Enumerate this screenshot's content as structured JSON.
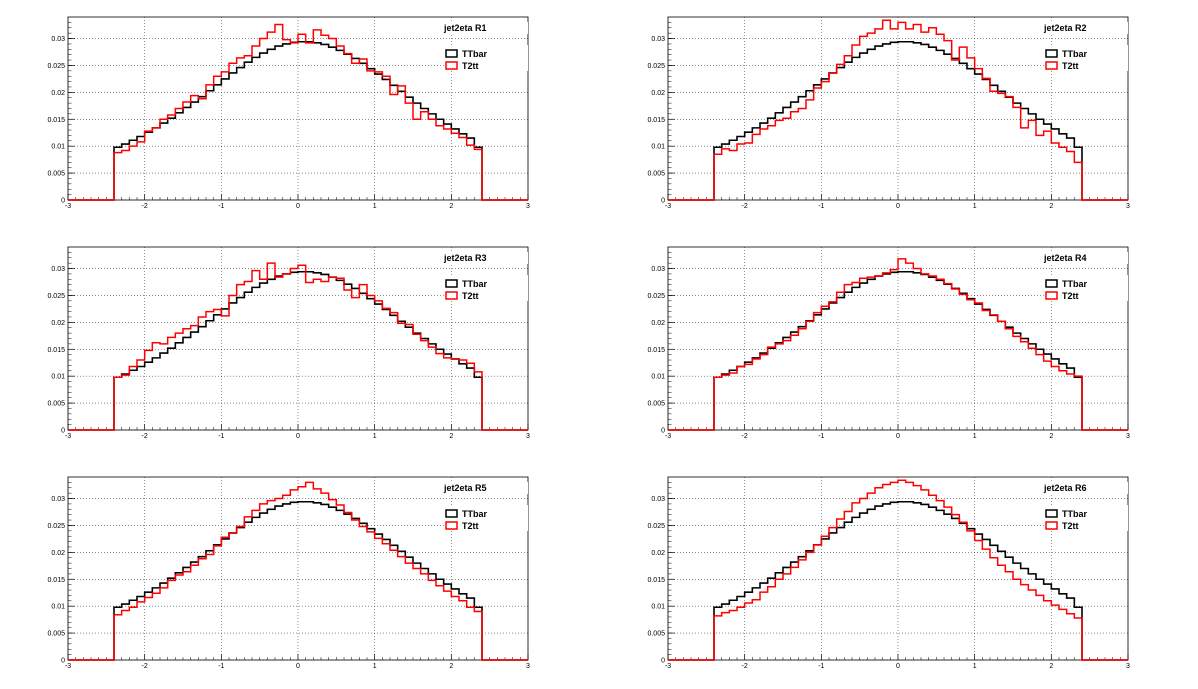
{
  "chart_data": [
    {
      "type": "line",
      "title": "jet2eta  R1",
      "xlim": [
        -3,
        3
      ],
      "ylim": [
        0,
        0.034
      ],
      "xticks": [
        "-3",
        "-2",
        "-1",
        "0",
        "1",
        "2",
        "3"
      ],
      "yticks": [
        "0",
        "0.005",
        "0.01",
        "0.015",
        "0.02",
        "0.025",
        "0.03"
      ],
      "grid": true,
      "legend_position": "top-right",
      "x_range": [
        -2.4,
        2.4
      ],
      "bins": 48,
      "series": [
        {
          "name": "TTbar",
          "color": "#000000",
          "values": [
            0.0098,
            0.0104,
            0.0111,
            0.0118,
            0.0126,
            0.0134,
            0.0143,
            0.0152,
            0.0162,
            0.0172,
            0.0182,
            0.0192,
            0.0203,
            0.0214,
            0.0225,
            0.0236,
            0.0246,
            0.0256,
            0.0265,
            0.0273,
            0.028,
            0.0286,
            0.029,
            0.0293,
            0.0294,
            0.0294,
            0.0292,
            0.0289,
            0.0284,
            0.0278,
            0.0271,
            0.0263,
            0.0254,
            0.0244,
            0.0234,
            0.0224,
            0.0213,
            0.0202,
            0.0191,
            0.018,
            0.017,
            0.016,
            0.015,
            0.0141,
            0.0132,
            0.0123,
            0.0115,
            0.0098
          ]
        },
        {
          "name": "T2tt",
          "color": "#ff0000",
          "values": [
            0.0088,
            0.0092,
            0.01,
            0.0108,
            0.0128,
            0.0134,
            0.015,
            0.0158,
            0.017,
            0.0182,
            0.0194,
            0.0188,
            0.0214,
            0.023,
            0.0238,
            0.0254,
            0.0264,
            0.0268,
            0.0286,
            0.03,
            0.0312,
            0.0326,
            0.0298,
            0.0292,
            0.0308,
            0.0292,
            0.0316,
            0.0306,
            0.03,
            0.0286,
            0.0272,
            0.0254,
            0.0262,
            0.024,
            0.0238,
            0.023,
            0.0196,
            0.0212,
            0.018,
            0.015,
            0.0164,
            0.015,
            0.0138,
            0.0132,
            0.0124,
            0.0116,
            0.0102,
            0.0094
          ]
        }
      ]
    },
    {
      "type": "line",
      "title": "jet2eta  R2",
      "xlim": [
        -3,
        3
      ],
      "ylim": [
        0,
        0.034
      ],
      "xticks": [
        "-3",
        "-2",
        "-1",
        "0",
        "1",
        "2",
        "3"
      ],
      "yticks": [
        "0",
        "0.005",
        "0.01",
        "0.015",
        "0.02",
        "0.025",
        "0.03"
      ],
      "grid": true,
      "legend_position": "top-right",
      "x_range": [
        -2.4,
        2.4
      ],
      "bins": 48,
      "series": [
        {
          "name": "TTbar",
          "color": "#000000",
          "values": [
            0.0098,
            0.0104,
            0.0111,
            0.0118,
            0.0126,
            0.0134,
            0.0143,
            0.0152,
            0.0162,
            0.0172,
            0.0182,
            0.0192,
            0.0203,
            0.0214,
            0.0225,
            0.0236,
            0.0246,
            0.0256,
            0.0265,
            0.0273,
            0.028,
            0.0286,
            0.029,
            0.0293,
            0.0294,
            0.0294,
            0.0292,
            0.0289,
            0.0284,
            0.0278,
            0.0271,
            0.0263,
            0.0254,
            0.0244,
            0.0234,
            0.0224,
            0.0213,
            0.0202,
            0.0191,
            0.018,
            0.017,
            0.016,
            0.015,
            0.0141,
            0.0132,
            0.0123,
            0.0115,
            0.0098
          ]
        },
        {
          "name": "T2tt",
          "color": "#ff0000",
          "values": [
            0.0085,
            0.0095,
            0.0092,
            0.0104,
            0.0106,
            0.0122,
            0.0132,
            0.0138,
            0.0148,
            0.0152,
            0.0164,
            0.017,
            0.0186,
            0.0208,
            0.022,
            0.0236,
            0.0252,
            0.0268,
            0.0288,
            0.0304,
            0.031,
            0.0318,
            0.0334,
            0.0318,
            0.033,
            0.0318,
            0.0326,
            0.0312,
            0.032,
            0.0308,
            0.0296,
            0.026,
            0.0284,
            0.0264,
            0.0244,
            0.0226,
            0.0202,
            0.0198,
            0.0192,
            0.0172,
            0.0134,
            0.0148,
            0.012,
            0.0128,
            0.0106,
            0.0098,
            0.009,
            0.007
          ]
        }
      ]
    },
    {
      "type": "line",
      "title": "jet2eta  R3",
      "xlim": [
        -3,
        3
      ],
      "ylim": [
        0,
        0.034
      ],
      "xticks": [
        "-3",
        "-2",
        "-1",
        "0",
        "1",
        "2",
        "3"
      ],
      "yticks": [
        "0",
        "0.005",
        "0.01",
        "0.015",
        "0.02",
        "0.025",
        "0.03"
      ],
      "grid": true,
      "legend_position": "top-right",
      "x_range": [
        -2.4,
        2.4
      ],
      "bins": 48,
      "series": [
        {
          "name": "TTbar",
          "color": "#000000",
          "values": [
            0.0098,
            0.0104,
            0.0111,
            0.0118,
            0.0126,
            0.0134,
            0.0143,
            0.0152,
            0.0162,
            0.0172,
            0.0182,
            0.0192,
            0.0203,
            0.0214,
            0.0225,
            0.0236,
            0.0246,
            0.0256,
            0.0265,
            0.0273,
            0.028,
            0.0286,
            0.029,
            0.0293,
            0.0294,
            0.0294,
            0.0292,
            0.0289,
            0.0284,
            0.0278,
            0.0271,
            0.0263,
            0.0254,
            0.0244,
            0.0234,
            0.0224,
            0.0213,
            0.0202,
            0.0191,
            0.018,
            0.017,
            0.016,
            0.015,
            0.0141,
            0.0132,
            0.0123,
            0.0115,
            0.0098
          ]
        },
        {
          "name": "T2tt",
          "color": "#ff0000",
          "values": [
            0.0098,
            0.0102,
            0.0118,
            0.013,
            0.0148,
            0.0162,
            0.016,
            0.0172,
            0.018,
            0.0188,
            0.0194,
            0.021,
            0.022,
            0.0224,
            0.0212,
            0.025,
            0.027,
            0.0276,
            0.0296,
            0.028,
            0.031,
            0.0284,
            0.029,
            0.03,
            0.0306,
            0.0274,
            0.028,
            0.0276,
            0.0284,
            0.0282,
            0.026,
            0.0246,
            0.027,
            0.025,
            0.024,
            0.0226,
            0.0218,
            0.0198,
            0.0196,
            0.0178,
            0.0166,
            0.0154,
            0.0142,
            0.0134,
            0.0132,
            0.013,
            0.0124,
            0.0108
          ]
        }
      ]
    },
    {
      "type": "line",
      "title": "jet2eta  R4",
      "xlim": [
        -3,
        3
      ],
      "ylim": [
        0,
        0.034
      ],
      "xticks": [
        "-3",
        "-2",
        "-1",
        "0",
        "1",
        "2",
        "3"
      ],
      "yticks": [
        "0",
        "0.005",
        "0.01",
        "0.015",
        "0.02",
        "0.025",
        "0.03"
      ],
      "grid": true,
      "legend_position": "top-right",
      "x_range": [
        -2.4,
        2.4
      ],
      "bins": 48,
      "series": [
        {
          "name": "TTbar",
          "color": "#000000",
          "values": [
            0.0098,
            0.0104,
            0.0111,
            0.0118,
            0.0126,
            0.0134,
            0.0143,
            0.0152,
            0.0162,
            0.0172,
            0.0182,
            0.0192,
            0.0203,
            0.0214,
            0.0225,
            0.0236,
            0.0246,
            0.0256,
            0.0265,
            0.0273,
            0.028,
            0.0286,
            0.029,
            0.0293,
            0.0294,
            0.0294,
            0.0292,
            0.0289,
            0.0284,
            0.0278,
            0.0271,
            0.0263,
            0.0254,
            0.0244,
            0.0234,
            0.0224,
            0.0213,
            0.0202,
            0.0191,
            0.018,
            0.017,
            0.016,
            0.015,
            0.0141,
            0.0132,
            0.0123,
            0.0115,
            0.0098
          ]
        },
        {
          "name": "T2tt",
          "color": "#ff0000",
          "values": [
            0.0098,
            0.0102,
            0.0106,
            0.0118,
            0.0122,
            0.0132,
            0.014,
            0.0154,
            0.016,
            0.0166,
            0.0176,
            0.0188,
            0.0202,
            0.0218,
            0.023,
            0.0238,
            0.0256,
            0.027,
            0.0274,
            0.0282,
            0.0284,
            0.0286,
            0.0292,
            0.0298,
            0.0318,
            0.031,
            0.03,
            0.029,
            0.0286,
            0.028,
            0.0272,
            0.0262,
            0.0252,
            0.0242,
            0.0236,
            0.0222,
            0.0214,
            0.0202,
            0.0188,
            0.0174,
            0.0164,
            0.0152,
            0.014,
            0.0128,
            0.0118,
            0.011,
            0.0104,
            0.01
          ]
        }
      ]
    },
    {
      "type": "line",
      "title": "jet2eta  R5",
      "xlim": [
        -3,
        3
      ],
      "ylim": [
        0,
        0.034
      ],
      "xticks": [
        "-3",
        "-2",
        "-1",
        "0",
        "1",
        "2",
        "3"
      ],
      "yticks": [
        "0",
        "0.005",
        "0.01",
        "0.015",
        "0.02",
        "0.025",
        "0.03"
      ],
      "grid": true,
      "legend_position": "top-right",
      "x_range": [
        -2.4,
        2.4
      ],
      "bins": 48,
      "series": [
        {
          "name": "TTbar",
          "color": "#000000",
          "values": [
            0.0098,
            0.0104,
            0.0111,
            0.0118,
            0.0126,
            0.0134,
            0.0143,
            0.0152,
            0.0162,
            0.0172,
            0.0182,
            0.0192,
            0.0203,
            0.0214,
            0.0225,
            0.0236,
            0.0246,
            0.0256,
            0.0265,
            0.0273,
            0.028,
            0.0286,
            0.029,
            0.0293,
            0.0294,
            0.0294,
            0.0292,
            0.0289,
            0.0284,
            0.0278,
            0.0271,
            0.0263,
            0.0254,
            0.0244,
            0.0234,
            0.0224,
            0.0213,
            0.0202,
            0.0191,
            0.018,
            0.017,
            0.016,
            0.015,
            0.0141,
            0.0132,
            0.0123,
            0.0115,
            0.0098
          ]
        },
        {
          "name": "T2tt",
          "color": "#ff0000",
          "values": [
            0.0084,
            0.0092,
            0.0098,
            0.0108,
            0.0116,
            0.0124,
            0.0134,
            0.0148,
            0.0158,
            0.0164,
            0.0176,
            0.0188,
            0.0196,
            0.0212,
            0.0228,
            0.0236,
            0.0248,
            0.0266,
            0.0278,
            0.029,
            0.0296,
            0.03,
            0.0306,
            0.0316,
            0.0322,
            0.033,
            0.0318,
            0.031,
            0.0298,
            0.0288,
            0.0274,
            0.026,
            0.0248,
            0.0238,
            0.0226,
            0.0216,
            0.0204,
            0.0192,
            0.018,
            0.017,
            0.016,
            0.0148,
            0.0138,
            0.0128,
            0.0118,
            0.011,
            0.0098,
            0.009
          ]
        }
      ]
    },
    {
      "type": "line",
      "title": "jet2eta  R6",
      "xlim": [
        -3,
        3
      ],
      "ylim": [
        0,
        0.034
      ],
      "xticks": [
        "-3",
        "-2",
        "-1",
        "0",
        "1",
        "2",
        "3"
      ],
      "yticks": [
        "0",
        "0.005",
        "0.01",
        "0.015",
        "0.02",
        "0.025",
        "0.03"
      ],
      "grid": true,
      "legend_position": "top-right",
      "x_range": [
        -2.4,
        2.4
      ],
      "bins": 48,
      "series": [
        {
          "name": "TTbar",
          "color": "#000000",
          "values": [
            0.0098,
            0.0104,
            0.0111,
            0.0118,
            0.0126,
            0.0134,
            0.0143,
            0.0152,
            0.0162,
            0.0172,
            0.0182,
            0.0192,
            0.0203,
            0.0214,
            0.0225,
            0.0236,
            0.0246,
            0.0256,
            0.0265,
            0.0273,
            0.028,
            0.0286,
            0.029,
            0.0293,
            0.0294,
            0.0294,
            0.0292,
            0.0289,
            0.0284,
            0.0278,
            0.0271,
            0.0263,
            0.0254,
            0.0244,
            0.0234,
            0.0224,
            0.0213,
            0.0202,
            0.0191,
            0.018,
            0.017,
            0.016,
            0.015,
            0.0141,
            0.0132,
            0.0123,
            0.0115,
            0.0098
          ]
        },
        {
          "name": "T2tt",
          "color": "#ff0000",
          "values": [
            0.0082,
            0.0088,
            0.0092,
            0.0098,
            0.0106,
            0.0112,
            0.0126,
            0.0136,
            0.015,
            0.016,
            0.0172,
            0.0186,
            0.02,
            0.0214,
            0.023,
            0.0246,
            0.0262,
            0.0276,
            0.0292,
            0.03,
            0.031,
            0.032,
            0.0326,
            0.033,
            0.0334,
            0.033,
            0.0324,
            0.0316,
            0.0306,
            0.0296,
            0.0284,
            0.027,
            0.0256,
            0.024,
            0.0222,
            0.0206,
            0.019,
            0.0176,
            0.0164,
            0.015,
            0.014,
            0.013,
            0.012,
            0.011,
            0.0102,
            0.0094,
            0.0086,
            0.0078
          ]
        }
      ]
    }
  ]
}
